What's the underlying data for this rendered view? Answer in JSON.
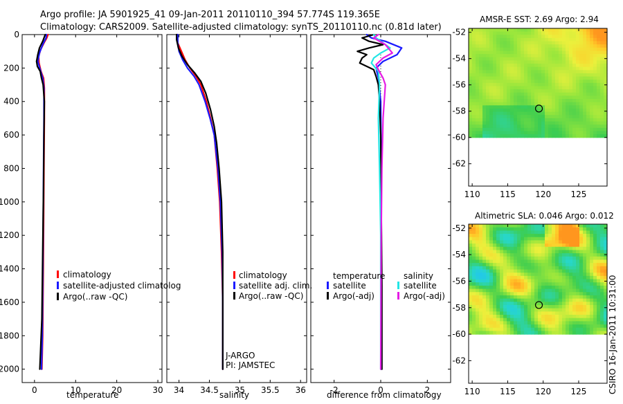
{
  "header": {
    "line1": "Argo profile: JA 5901925_41 09-Jan-2011 20110110_394 57.774S 119.365E",
    "line2": "Climatology: CARS2009. Satellite-adjusted climatology: synTS_20110110.nc (0.81d later)"
  },
  "footer_vertical": "CSIRO 16-Jan-2011 10:31:00",
  "colors": {
    "red": "#ff0000",
    "blue": "#1a1aff",
    "black": "#000000",
    "cyan": "#22e5e5",
    "magenta": "#e51ae5"
  },
  "chart_data": [
    {
      "type": "line",
      "name": "temperature",
      "xlabel": "temperature",
      "xlim": [
        -3,
        31
      ],
      "ylim": [
        2080,
        0
      ],
      "xticks": [
        0,
        10,
        20,
        30
      ],
      "xtick_labels": [
        "0",
        "10",
        "20",
        "30"
      ],
      "yticks": [
        0,
        200,
        400,
        600,
        800,
        1000,
        1200,
        1400,
        1600,
        1800,
        2000
      ],
      "ytick_labels": [
        "0",
        "200",
        "400",
        "600",
        "800",
        "1000",
        "1200",
        "1400",
        "1600",
        "1800",
        "2000"
      ],
      "legend": [
        "climatology",
        "satellite-adjusted climatolog",
        "Argo(..raw -QC)"
      ],
      "series": [
        {
          "name": "climatology",
          "color": "red",
          "points": [
            [
              3.3,
              0
            ],
            [
              3.0,
              20
            ],
            [
              2.3,
              50
            ],
            [
              1.5,
              90
            ],
            [
              1.0,
              130
            ],
            [
              1.1,
              170
            ],
            [
              1.6,
              220
            ],
            [
              2.2,
              260
            ],
            [
              2.4,
              320
            ],
            [
              2.4,
              500
            ],
            [
              2.3,
              800
            ],
            [
              2.2,
              1200
            ],
            [
              2.1,
              1500
            ],
            [
              2.0,
              1800
            ],
            [
              1.8,
              2000
            ]
          ]
        },
        {
          "name": "satellite-adjusted climatology",
          "color": "blue",
          "points": [
            [
              2.9,
              0
            ],
            [
              2.8,
              20
            ],
            [
              2.0,
              60
            ],
            [
              1.2,
              110
            ],
            [
              0.8,
              160
            ],
            [
              1.4,
              210
            ],
            [
              2.0,
              260
            ],
            [
              2.3,
              320
            ],
            [
              2.3,
              500
            ],
            [
              2.2,
              800
            ],
            [
              2.1,
              1200
            ],
            [
              2.0,
              1500
            ],
            [
              1.9,
              1800
            ],
            [
              1.7,
              2000
            ]
          ]
        },
        {
          "name": "Argo(..raw -QC)",
          "color": "black",
          "points": [
            [
              2.6,
              0
            ],
            [
              2.0,
              40
            ],
            [
              1.2,
              80
            ],
            [
              0.8,
              120
            ],
            [
              0.5,
              160
            ],
            [
              0.7,
              190
            ],
            [
              1.4,
              220
            ],
            [
              1.7,
              260
            ],
            [
              2.1,
              300
            ],
            [
              2.4,
              400
            ],
            [
              2.3,
              600
            ],
            [
              2.2,
              900
            ],
            [
              2.0,
              1300
            ],
            [
              1.8,
              1700
            ],
            [
              1.3,
              2000
            ]
          ]
        }
      ]
    },
    {
      "type": "line",
      "name": "salinity",
      "xlabel": "salinity",
      "xlim": [
        33.8,
        36.1
      ],
      "ylim": [
        2080,
        0
      ],
      "xticks": [
        34,
        34.5,
        35,
        35.5,
        36
      ],
      "xtick_labels": [
        "34",
        "34.5",
        "35",
        "35.5",
        "36"
      ],
      "legend": [
        "climatology",
        "satellite adj. clim.",
        "Argo(..raw -QC)"
      ],
      "annotations": [
        "J-ARGO",
        "PI: JAMSTEC"
      ],
      "series": [
        {
          "name": "climatology",
          "color": "red",
          "points": [
            [
              33.97,
              0
            ],
            [
              33.98,
              50
            ],
            [
              34.04,
              100
            ],
            [
              34.1,
              150
            ],
            [
              34.18,
              200
            ],
            [
              34.28,
              250
            ],
            [
              34.36,
              300
            ],
            [
              34.45,
              400
            ],
            [
              34.52,
              500
            ],
            [
              34.58,
              600
            ],
            [
              34.63,
              800
            ],
            [
              34.67,
              1000
            ],
            [
              34.7,
              1300
            ],
            [
              34.72,
              1600
            ],
            [
              34.72,
              2000
            ]
          ]
        },
        {
          "name": "satellite adj. clim.",
          "color": "blue",
          "points": [
            [
              33.98,
              0
            ],
            [
              33.98,
              50
            ],
            [
              34.0,
              100
            ],
            [
              34.06,
              150
            ],
            [
              34.14,
              200
            ],
            [
              34.25,
              250
            ],
            [
              34.33,
              300
            ],
            [
              34.43,
              400
            ],
            [
              34.51,
              500
            ],
            [
              34.58,
              600
            ],
            [
              34.64,
              800
            ],
            [
              34.68,
              1000
            ],
            [
              34.71,
              1300
            ],
            [
              34.72,
              1600
            ],
            [
              34.72,
              2000
            ]
          ]
        },
        {
          "name": "Argo(..raw -QC)",
          "color": "black",
          "points": [
            [
              33.96,
              0
            ],
            [
              33.96,
              30
            ],
            [
              33.99,
              80
            ],
            [
              34.05,
              130
            ],
            [
              34.14,
              180
            ],
            [
              34.26,
              230
            ],
            [
              34.36,
              280
            ],
            [
              34.44,
              350
            ],
            [
              34.52,
              450
            ],
            [
              34.58,
              550
            ],
            [
              34.62,
              650
            ],
            [
              34.66,
              800
            ],
            [
              34.7,
              1000
            ],
            [
              34.72,
              1300
            ],
            [
              34.72,
              1700
            ],
            [
              34.72,
              2000
            ]
          ]
        }
      ]
    },
    {
      "type": "line",
      "name": "difference from climatology",
      "xlabel": "difference from climatology",
      "xlim": [
        -3,
        3
      ],
      "ylim": [
        2080,
        0
      ],
      "xticks": [
        -2,
        0,
        2
      ],
      "xtick_labels": [
        "-2",
        "0",
        "2"
      ],
      "legend_headers": [
        "temperature",
        "salinity"
      ],
      "legend": [
        "satellite",
        "Argo(-adj)",
        "satellite",
        "Argo(-adj)"
      ],
      "series": [
        {
          "name": "temperature satellite",
          "color": "blue",
          "points": [
            [
              -0.6,
              0
            ],
            [
              -0.4,
              20
            ],
            [
              0.2,
              40
            ],
            [
              0.9,
              80
            ],
            [
              0.7,
              120
            ],
            [
              0.1,
              160
            ],
            [
              -0.2,
              200
            ],
            [
              -0.1,
              260
            ],
            [
              0,
              400
            ],
            [
              0.02,
              800
            ],
            [
              0.02,
              1200
            ],
            [
              0.02,
              1600
            ],
            [
              0.02,
              2000
            ]
          ]
        },
        {
          "name": "temperature Argo(-adj)",
          "color": "black",
          "points": [
            [
              -0.3,
              0
            ],
            [
              -0.8,
              20
            ],
            [
              -0.5,
              40
            ],
            [
              0.1,
              60
            ],
            [
              -0.5,
              80
            ],
            [
              -1.0,
              100
            ],
            [
              -0.6,
              120
            ],
            [
              -0.8,
              140
            ],
            [
              -0.9,
              170
            ],
            [
              -0.3,
              210
            ],
            [
              -0.2,
              250
            ],
            [
              -0.1,
              300
            ],
            [
              -0.05,
              400
            ],
            [
              0,
              600
            ],
            [
              0.02,
              1000
            ],
            [
              0.05,
              1500
            ],
            [
              0.05,
              2000
            ]
          ]
        },
        {
          "name": "salinity satellite",
          "color": "cyan",
          "points": [
            [
              -0.3,
              0
            ],
            [
              -0.2,
              20
            ],
            [
              0.1,
              50
            ],
            [
              0.4,
              80
            ],
            [
              0,
              110
            ],
            [
              -0.3,
              140
            ],
            [
              -0.4,
              170
            ],
            [
              -0.1,
              220
            ],
            [
              -0.05,
              300
            ],
            [
              -0.1,
              500
            ],
            [
              -0.05,
              800
            ],
            [
              0,
              1200
            ],
            [
              0,
              2000
            ]
          ]
        },
        {
          "name": "salinity Argo(-adj)",
          "color": "magenta",
          "points": [
            [
              -0.1,
              0
            ],
            [
              -0.3,
              20
            ],
            [
              0.2,
              60
            ],
            [
              0.5,
              110
            ],
            [
              0.1,
              140
            ],
            [
              -0.2,
              180
            ],
            [
              -0.1,
              210
            ],
            [
              0.1,
              260
            ],
            [
              0.2,
              300
            ],
            [
              0.1,
              500
            ],
            [
              0.05,
              800
            ],
            [
              0.02,
              1200
            ],
            [
              0,
              2000
            ]
          ]
        }
      ]
    },
    {
      "type": "heatmap",
      "name": "AMSR-E SST",
      "title": "AMSR-E SST: 2.69 Argo: 2.94",
      "xlim": [
        109.5,
        129
      ],
      "ylim": [
        -63.7,
        -51.7
      ],
      "data_lat_min": -60,
      "xticks": [
        110,
        115,
        120,
        125
      ],
      "xtick_labels": [
        "110",
        "115",
        "120",
        "125"
      ],
      "yticks": [
        -52,
        -54,
        -56,
        -58,
        -60,
        -62
      ],
      "ytick_labels": [
        "-52",
        "-54",
        "-56",
        "-58",
        "-60",
        "-62"
      ],
      "marker": {
        "lon": 119.4,
        "lat": -57.8
      }
    },
    {
      "type": "heatmap",
      "name": "Altimetric SLA",
      "title": "Altimetric SLA: 0.046 Argo: 0.012",
      "xlim": [
        109.5,
        129
      ],
      "ylim": [
        -63.7,
        -51.7
      ],
      "data_lat_min": -60,
      "xticks": [
        110,
        115,
        120,
        125
      ],
      "xtick_labels": [
        "110",
        "115",
        "120",
        "125"
      ],
      "yticks": [
        -52,
        -54,
        -56,
        -58,
        -60,
        -62
      ],
      "ytick_labels": [
        "-52",
        "-54",
        "-56",
        "-58",
        "-60",
        "-62"
      ],
      "marker": {
        "lon": 119.4,
        "lat": -57.8
      }
    }
  ]
}
